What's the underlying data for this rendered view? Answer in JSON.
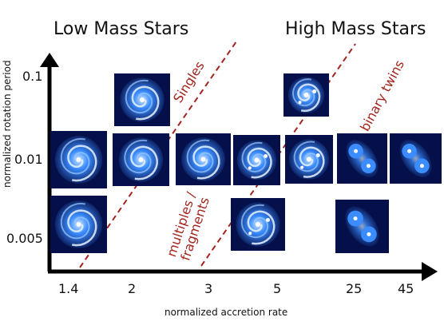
{
  "headings": {
    "low_mass": "Low Mass Stars",
    "high_mass": "High Mass Stars"
  },
  "axes": {
    "x_title": "normalized accretion rate",
    "y_title": "normalized rotation period",
    "x_ticks": [
      "1.4",
      "2",
      "3",
      "5",
      "25",
      "45"
    ],
    "y_ticks": [
      "0.1",
      "0.01",
      "0.005"
    ]
  },
  "regions": {
    "singles": "Singles",
    "multiples_line1": "multiples /",
    "multiples_line2": "fragments",
    "binary_twins": "binary twins"
  },
  "simulation_panels": [
    {
      "id": "r1-c2",
      "row": "0.1",
      "col": "2",
      "morphology": "single spiral disk"
    },
    {
      "id": "r1-c5",
      "row": "0.1",
      "col": "5",
      "morphology": "disk with fragment"
    },
    {
      "id": "r2-c1.4",
      "row": "0.01",
      "col": "1.4",
      "morphology": "single spiral disk"
    },
    {
      "id": "r2-c2",
      "row": "0.01",
      "col": "2",
      "morphology": "single spiral disk"
    },
    {
      "id": "r2-c3",
      "row": "0.01",
      "col": "3",
      "morphology": "distorted disk"
    },
    {
      "id": "r2-c3b",
      "row": "0.01",
      "col": "3-5",
      "morphology": "multiple fragments"
    },
    {
      "id": "r2-c5",
      "row": "0.01",
      "col": "5",
      "morphology": "fragmenting disk"
    },
    {
      "id": "r2-c25",
      "row": "0.01",
      "col": "25",
      "morphology": "binary"
    },
    {
      "id": "r2-c45",
      "row": "0.01",
      "col": "45",
      "morphology": "binary"
    },
    {
      "id": "r3-c1.4",
      "row": "0.005",
      "col": "1.4",
      "morphology": "single spiral disk"
    },
    {
      "id": "r3-c5",
      "row": "0.005",
      "col": "5",
      "morphology": "disk with fragment"
    },
    {
      "id": "r3-c25",
      "row": "0.005",
      "col": "25",
      "morphology": "binary"
    }
  ],
  "colors": {
    "axis": "#000000",
    "divider": "#a3251e",
    "panel_bg": "#05104a",
    "gas": "#3a8cff",
    "core": "#ffffff"
  }
}
